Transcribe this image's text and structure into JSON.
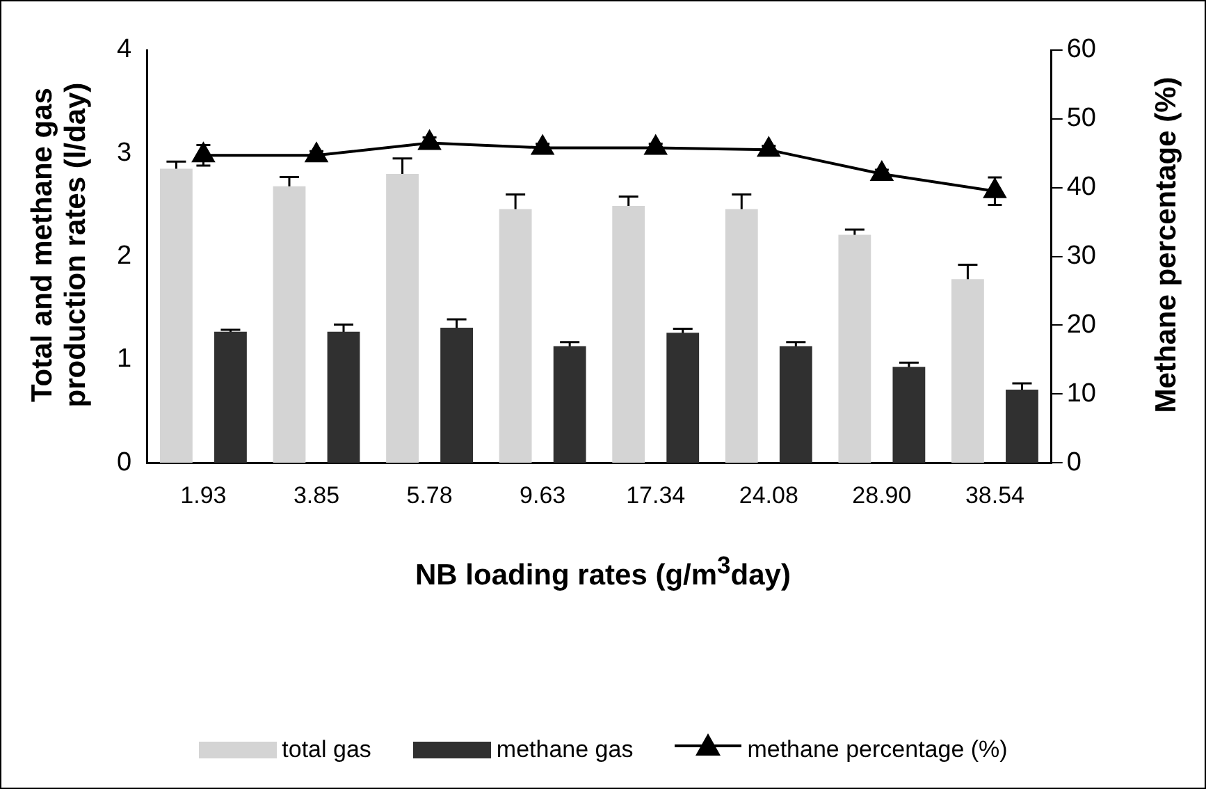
{
  "chart_data": {
    "type": "bar",
    "xlabel": "NB loading rates (g/m$^{3}$day)",
    "ylabel": "Total and methane gas production rates (l/day)",
    "y2label": "Methane percentage (%)",
    "categories": [
      "1.93",
      "3.85",
      "5.78",
      "9.63",
      "17.34",
      "24.08",
      "28.90",
      "38.54"
    ],
    "series": [
      {
        "name": "total gas",
        "color": "#d4d4d4",
        "values": [
          2.85,
          2.68,
          2.8,
          2.46,
          2.49,
          2.46,
          2.21,
          1.78
        ],
        "errors": [
          0.07,
          0.09,
          0.15,
          0.14,
          0.09,
          0.14,
          0.05,
          0.14
        ]
      },
      {
        "name": "methane gas",
        "color": "#303030",
        "values": [
          1.27,
          1.27,
          1.31,
          1.13,
          1.26,
          1.13,
          0.93,
          0.71
        ],
        "errors": [
          0.02,
          0.07,
          0.08,
          0.04,
          0.04,
          0.04,
          0.04,
          0.06
        ]
      },
      {
        "name": "methane percentage (%)",
        "type": "line",
        "axis": "y2",
        "color": "#000000",
        "values": [
          44.7,
          44.7,
          46.5,
          45.8,
          45.8,
          45.5,
          42,
          39.5
        ],
        "errors": [
          1.5,
          0.6,
          0.8,
          0.6,
          0.6,
          0.6,
          0.6,
          2
        ]
      }
    ],
    "ylim": [
      0,
      4
    ],
    "yticks": [
      0,
      1,
      2,
      3,
      4
    ],
    "y2lim": [
      0,
      60
    ],
    "y2ticks": [
      0,
      10,
      20,
      30,
      40,
      50,
      60
    ],
    "grid": false,
    "legend": "bottom",
    "marker": "triangle",
    "line_style": "solid"
  }
}
